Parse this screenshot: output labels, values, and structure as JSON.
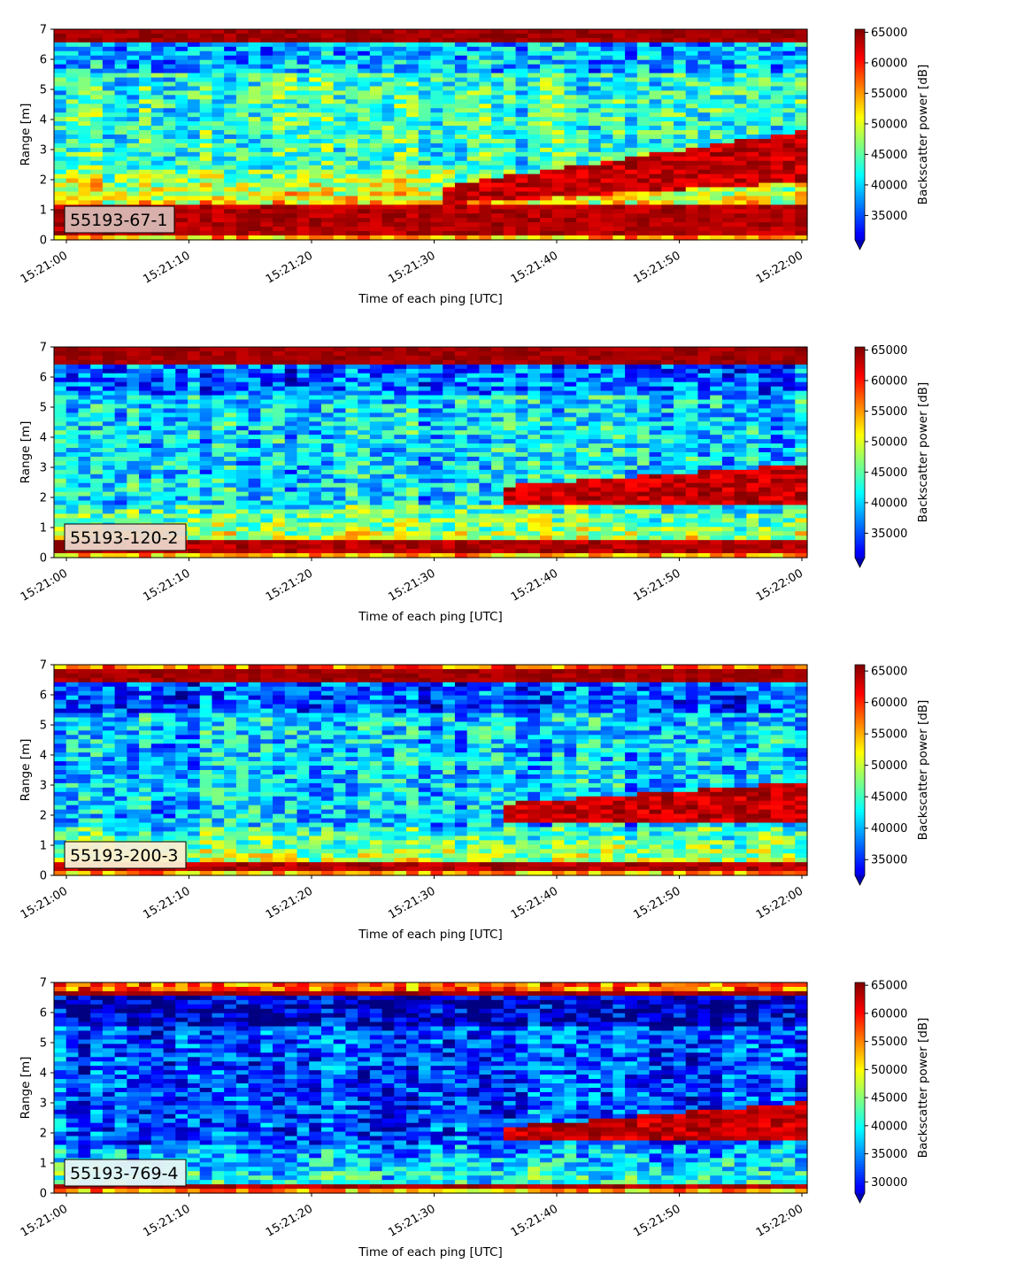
{
  "colorbar_label": "Backscatter power [dB]",
  "chart_data": [
    {
      "type": "heatmap",
      "panel_label": "55193-67-1",
      "xlabel": "Time of each ping [UTC]",
      "ylabel": "Range [m]",
      "x_range": [
        "15:21:00",
        "15:22:00"
      ],
      "xticks": [
        "15:21:00",
        "15:21:10",
        "15:21:20",
        "15:21:30",
        "15:21:40",
        "15:21:50",
        "15:22:00"
      ],
      "yticks": [
        0,
        1,
        2,
        3,
        4,
        5,
        6,
        7
      ],
      "ylim": [
        0,
        7
      ],
      "colormap": "jet",
      "colorbar": {
        "label": "Backscatter power [dB]",
        "ticks": [
          35000,
          40000,
          45000,
          50000,
          55000,
          60000,
          65000
        ],
        "range": [
          31000,
          65500
        ],
        "extend": "min"
      },
      "features": {
        "surface_band_m": [
          6.5,
          7.0
        ],
        "bottom_band_m": [
          0.2,
          1.15
        ],
        "plume_rise": {
          "start_s": 31,
          "lower_m": [
            1.2,
            1.9
          ],
          "upper_m": [
            1.8,
            3.6
          ]
        },
        "background_level": 0.42
      }
    },
    {
      "type": "heatmap",
      "panel_label": "55193-120-2",
      "xlabel": "Time of each ping [UTC]",
      "ylabel": "Range [m]",
      "x_range": [
        "15:21:00",
        "15:22:00"
      ],
      "xticks": [
        "15:21:00",
        "15:21:10",
        "15:21:20",
        "15:21:30",
        "15:21:40",
        "15:21:50",
        "15:22:00"
      ],
      "yticks": [
        0,
        1,
        2,
        3,
        4,
        5,
        6,
        7
      ],
      "ylim": [
        0,
        7
      ],
      "colormap": "jet",
      "colorbar": {
        "label": "Backscatter power [dB]",
        "ticks": [
          35000,
          40000,
          45000,
          50000,
          55000,
          60000,
          65000
        ],
        "range": [
          31000,
          65500
        ],
        "extend": "min"
      },
      "features": {
        "surface_band_m": [
          6.4,
          7.0
        ],
        "bottom_band_m": [
          0.1,
          0.55
        ],
        "plume_rise": {
          "start_s": 36,
          "lower_m": [
            1.7,
            1.8
          ],
          "upper_m": [
            2.4,
            3.1
          ]
        },
        "background_level": 0.34
      }
    },
    {
      "type": "heatmap",
      "panel_label": "55193-200-3",
      "xlabel": "Time of each ping [UTC]",
      "ylabel": "Range [m]",
      "x_range": [
        "15:21:00",
        "15:22:00"
      ],
      "xticks": [
        "15:21:00",
        "15:21:10",
        "15:21:20",
        "15:21:30",
        "15:21:40",
        "15:21:50",
        "15:22:00"
      ],
      "yticks": [
        0,
        1,
        2,
        3,
        4,
        5,
        6,
        7
      ],
      "ylim": [
        0,
        7
      ],
      "colormap": "jet",
      "colorbar": {
        "label": "Backscatter power [dB]",
        "ticks": [
          35000,
          40000,
          45000,
          50000,
          55000,
          60000,
          65000
        ],
        "range": [
          32500,
          66000
        ],
        "extend": "min"
      },
      "features": {
        "surface_band_m": [
          6.4,
          6.9
        ],
        "bottom_band_m": [
          0.1,
          0.4
        ],
        "plume_rise": {
          "start_s": 36,
          "lower_m": [
            1.7,
            1.8
          ],
          "upper_m": [
            2.4,
            3.1
          ]
        },
        "background_level": 0.32
      }
    },
    {
      "type": "heatmap",
      "panel_label": "55193-769-4",
      "xlabel": "Time of each ping [UTC]",
      "ylabel": "Range [m]",
      "x_range": [
        "15:21:00",
        "15:22:00"
      ],
      "xticks": [
        "15:21:00",
        "15:21:10",
        "15:21:20",
        "15:21:30",
        "15:21:40",
        "15:21:50",
        "15:22:00"
      ],
      "yticks": [
        0,
        1,
        2,
        3,
        4,
        5,
        6,
        7
      ],
      "ylim": [
        0,
        7
      ],
      "colormap": "jet",
      "colorbar": {
        "label": "Backscatter power [dB]",
        "ticks": [
          30000,
          35000,
          40000,
          45000,
          50000,
          55000,
          60000,
          65000
        ],
        "range": [
          28000,
          65500
        ],
        "extend": "min"
      },
      "features": {
        "surface_band_m": [
          6.5,
          6.75
        ],
        "bottom_band_m": [
          0.15,
          0.35
        ],
        "plume_rise": {
          "start_s": 36,
          "lower_m": [
            1.7,
            1.8
          ],
          "upper_m": [
            2.2,
            3.0
          ]
        },
        "background_level": 0.2
      }
    }
  ]
}
